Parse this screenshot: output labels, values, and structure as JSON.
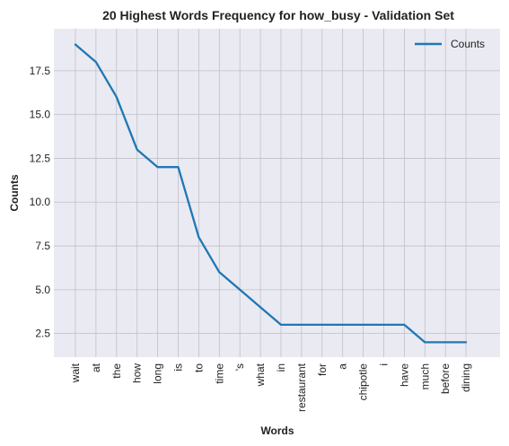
{
  "chart_data": {
    "type": "line",
    "title": "20 Highest Words Frequency for how_busy - Validation Set",
    "xlabel": "Words",
    "ylabel": "Counts",
    "categories": [
      "wait",
      "at",
      "the",
      "how",
      "long",
      "is",
      "to",
      "time",
      "'s",
      "what",
      "in",
      "restaurant",
      "for",
      "a",
      "chipotle",
      "i",
      "have",
      "much",
      "before",
      "dining"
    ],
    "series": [
      {
        "name": "Counts",
        "values": [
          19,
          18,
          16,
          13,
          12,
          12,
          8,
          6,
          5,
          4,
          3,
          3,
          3,
          3,
          3,
          3,
          3,
          2,
          2,
          2
        ],
        "color": "#1f77b4"
      }
    ],
    "ylim": [
      1.15,
      19.9
    ],
    "yticks": [
      2.5,
      5.0,
      7.5,
      10.0,
      12.5,
      15.0,
      17.5
    ],
    "ytick_labels": [
      "2.5",
      "5.0",
      "7.5",
      "10.0",
      "12.5",
      "15.0",
      "17.5"
    ],
    "grid": true,
    "legend_position": "top-right",
    "background_color": "#eaeaf2",
    "grid_color": "#c0c0c8"
  }
}
